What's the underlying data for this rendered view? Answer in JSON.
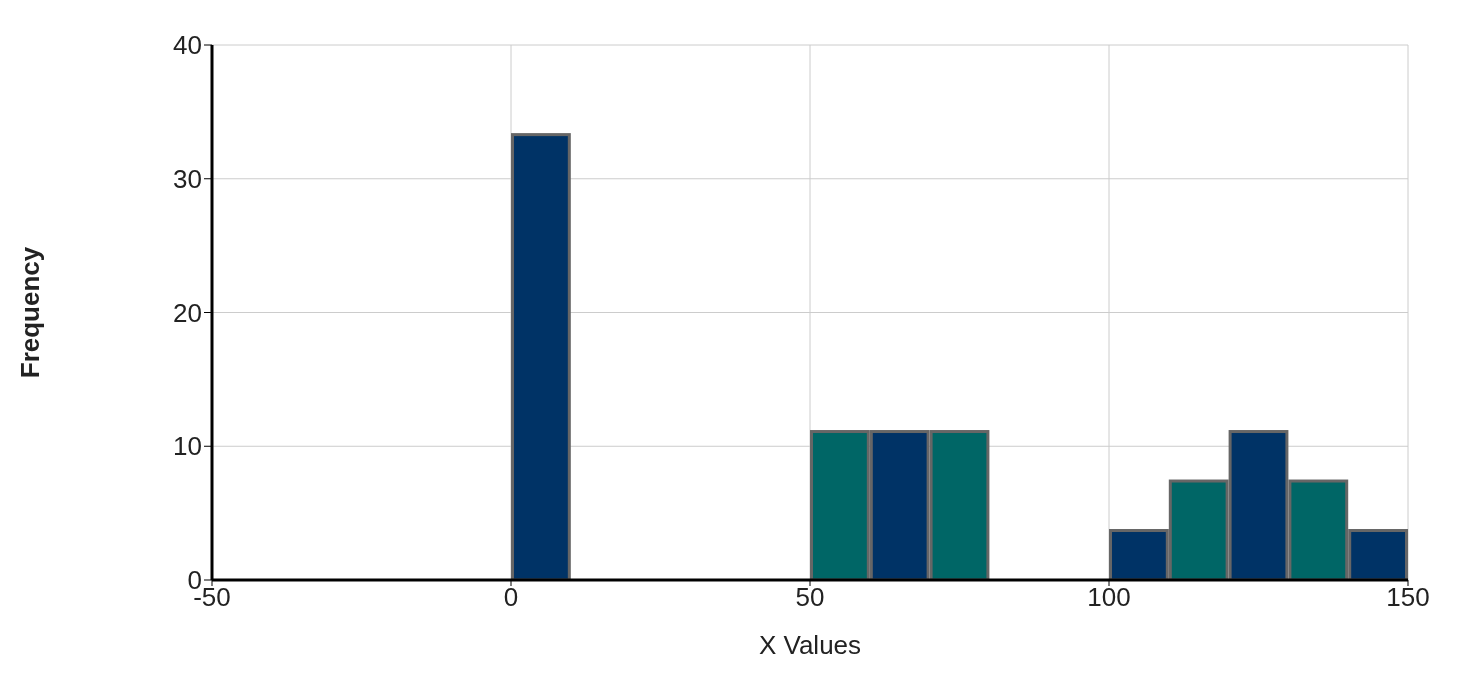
{
  "chart_data": {
    "type": "histogram",
    "xlabel": "X Values",
    "ylabel": "Frequency",
    "bins": [
      0,
      10,
      20,
      30,
      40,
      50,
      60,
      70,
      80,
      90,
      100,
      110,
      120,
      130,
      140,
      150
    ],
    "values": [
      33.3,
      0,
      0,
      0,
      0,
      11.1,
      11.1,
      11.1,
      0,
      0,
      3.7,
      7.4,
      11.1,
      7.4,
      3.7
    ],
    "colors": [
      "#003366",
      "#006666",
      "#003366",
      "#006666",
      "#003366",
      "#006666",
      "#003366",
      "#006666",
      "#003366",
      "#006666",
      "#003366",
      "#006666",
      "#003366",
      "#006666",
      "#003366"
    ],
    "xlim": [
      -50,
      150
    ],
    "xticks": [
      -50,
      0,
      50,
      100,
      150
    ],
    "ylim": [
      0,
      40
    ],
    "yticks": [
      0,
      10,
      20,
      30,
      40
    ],
    "grid": true
  }
}
